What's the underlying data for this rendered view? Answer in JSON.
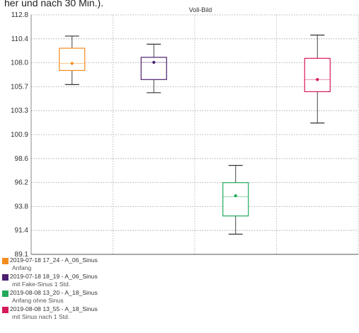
{
  "header_fragment": "her und nach 30 Min.).",
  "chart_data": {
    "type": "boxplot",
    "title": "Voll-Bild",
    "ylim": [
      89.1,
      112.8
    ],
    "yticks": [
      "112.8",
      "110.4",
      "108.0",
      "105.7",
      "103.3",
      "100.9",
      "98.6",
      "96.2",
      "93.8",
      "91.4",
      "89.1"
    ],
    "grid": true,
    "legend_position": "bottom-left",
    "series": [
      {
        "name": "2019-07-18 17_24 - A_06_Sinus",
        "subtitle": "Anfang",
        "color": "#f28c1e",
        "stats": {
          "min": 105.9,
          "q1": 107.3,
          "median": 108.0,
          "q3": 109.5,
          "max": 110.7,
          "mean": 108.0
        }
      },
      {
        "name": "2019-07-18 18_19 - A_06_Sinus",
        "subtitle": "mit Fake-Sinus 1 Std.",
        "color": "#4b1f6f",
        "stats": {
          "min": 105.1,
          "q1": 106.4,
          "median": 108.1,
          "q3": 108.6,
          "max": 109.9,
          "mean": 108.1
        }
      },
      {
        "name": "2019-08-08 13_20 - A_18_Sinus",
        "subtitle": "Anfang ohne Sinus",
        "color": "#21a95b",
        "stats": {
          "min": 91.1,
          "q1": 92.9,
          "median": 94.8,
          "q3": 96.2,
          "max": 97.9,
          "mean": 94.9
        }
      },
      {
        "name": "2019-08-08 13_55 - A_18_Sinus",
        "subtitle": "mit Sinus nach 1 Std.",
        "color": "#d6195b",
        "stats": {
          "min": 102.1,
          "q1": 105.2,
          "median": 106.4,
          "q3": 108.5,
          "max": 110.8,
          "mean": 106.4
        }
      }
    ]
  }
}
